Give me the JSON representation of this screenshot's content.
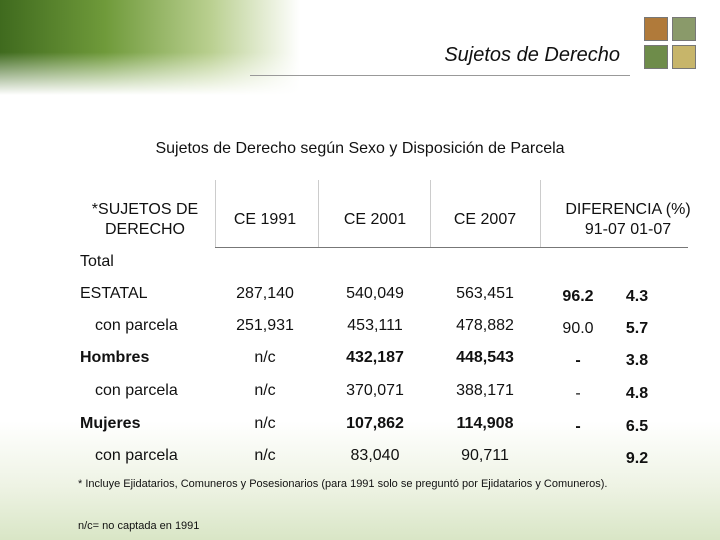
{
  "header": {
    "title": "Sujetos de Derecho"
  },
  "subtitle": "Sujetos de Derecho según Sexo y Disposición de Parcela",
  "table": {
    "columns": [
      "*SUJETOS DE DERECHO",
      "CE 1991",
      "CE 2001",
      "CE 2007",
      "DIFERENCIA (%) 91-07   01-07"
    ],
    "rows": [
      {
        "label": "Total",
        "values": [
          null,
          null,
          null,
          null,
          null
        ]
      },
      {
        "label": "ESTATAL",
        "values": [
          "287,140",
          "540,049",
          "563,451",
          "96.2",
          "4.3"
        ]
      },
      {
        "label": "con parcela",
        "values": [
          "251,931",
          "453,111",
          "478,882",
          "90.0",
          "5.7"
        ]
      },
      {
        "label": "Hombres",
        "values": [
          "n/c",
          "432,187",
          "448,543",
          "-",
          "3.8"
        ]
      },
      {
        "label": "con parcela",
        "values": [
          "n/c",
          "370,071",
          "388,171",
          "-",
          "4.8"
        ]
      },
      {
        "label": "Mujeres",
        "values": [
          "n/c",
          "107,862",
          "114,908",
          "-",
          "6.5"
        ]
      },
      {
        "label": "con parcela",
        "values": [
          "n/c",
          "83,040",
          "90,711",
          null,
          "9.2"
        ]
      }
    ]
  },
  "notes": [
    "* Incluye Ejidatarios, Comuneros y Posesionarios (para 1991 solo se preguntó por Ejidatarios y Comuneros).",
    "n/c= no captada en 1991"
  ]
}
